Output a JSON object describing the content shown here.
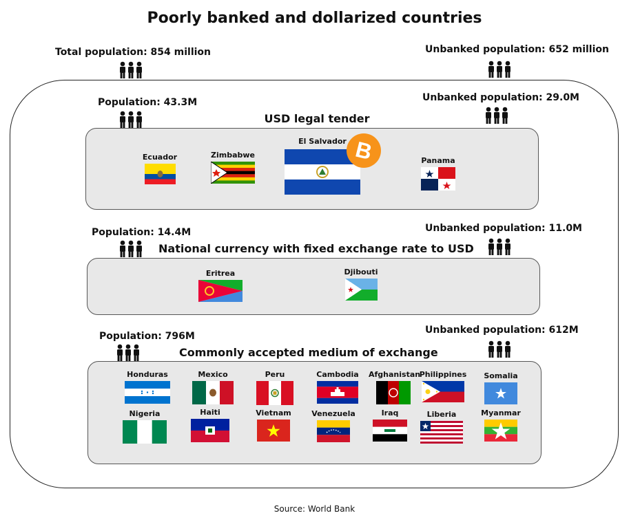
{
  "title": "Poorly banked and dollarized countries",
  "totals": {
    "population": "Total population: 854 million",
    "unbanked": "Unbanked population: 652 million"
  },
  "sections": [
    {
      "title": "USD legal tender",
      "population": "Population: 43.3M",
      "unbanked": "Unbanked population: 29.0M",
      "countries": [
        "Ecuador",
        "Zimbabwe",
        "El Salvador",
        "Panama"
      ]
    },
    {
      "title": "National currency with fixed exchange rate to USD",
      "population": "Population: 14.4M",
      "unbanked": "Unbanked population: 11.0M",
      "countries": [
        "Eritrea",
        "Djibouti"
      ]
    },
    {
      "title": "Commonly accepted medium of exchange",
      "population": "Population: 796M",
      "unbanked": "Unbanked population: 612M",
      "countries": [
        "Honduras",
        "Mexico",
        "Peru",
        "Cambodia",
        "Afghanistan",
        "Philippines",
        "Somalia",
        "Nigeria",
        "Haiti",
        "Vietnam",
        "Venezuela",
        "Iraq",
        "Liberia",
        "Myanmar"
      ]
    }
  ],
  "icons": {
    "people": "people-group-icon",
    "bitcoin": "bitcoin-icon"
  },
  "colors": {
    "panel": "#e8e8e8",
    "bitcoin": "#f7931a"
  },
  "source": "Source: World Bank"
}
